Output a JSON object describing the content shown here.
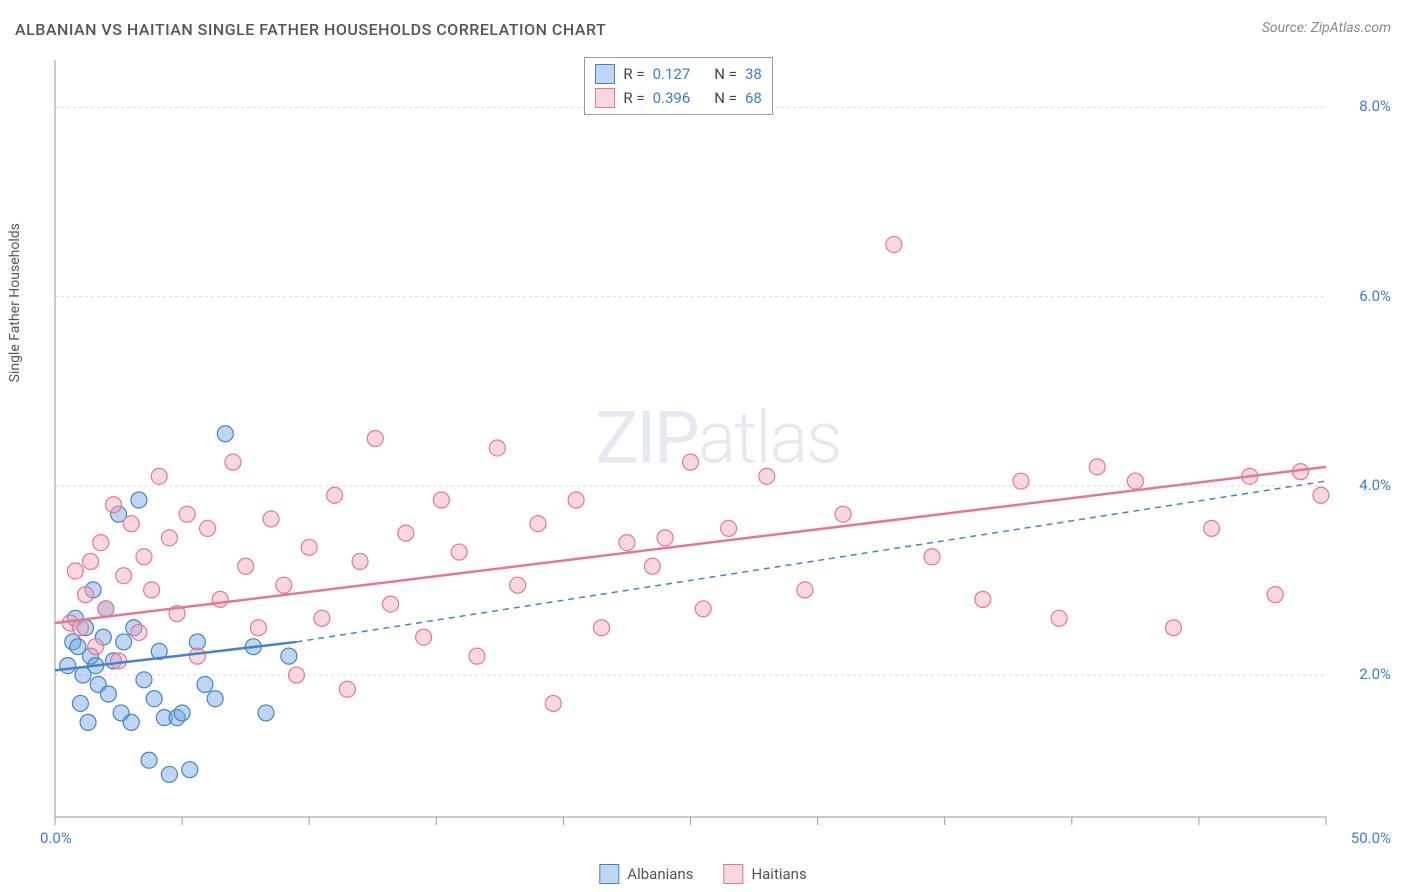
{
  "title": "ALBANIAN VS HAITIAN SINGLE FATHER HOUSEHOLDS CORRELATION CHART",
  "source": "Source: ZipAtlas.com",
  "y_axis_label": "Single Father Households",
  "watermark": {
    "part1": "ZIP",
    "part2": "atlas"
  },
  "chart": {
    "type": "scatter",
    "xlim": [
      0,
      50
    ],
    "ylim": [
      0.5,
      8.5
    ],
    "x_ticks": [
      0,
      5,
      10,
      15,
      20,
      25,
      30,
      35,
      40,
      45,
      50
    ],
    "x_tick_labels": {
      "0": "0.0%",
      "50": "50.0%"
    },
    "y_ticks": [
      2,
      4,
      6,
      8
    ],
    "y_tick_labels": {
      "2": "2.0%",
      "4": "4.0%",
      "6": "6.0%",
      "8": "8.0%"
    },
    "grid_color": "#d9d9d9",
    "axis_color": "#999999",
    "background_color": "#ffffff",
    "marker_radius": 8,
    "marker_fill_opacity": 0.45,
    "marker_stroke_width": 1.2,
    "series": [
      {
        "name": "Albanians",
        "color": "#6fa3e0",
        "stroke": "#4a82c7",
        "R": "0.127",
        "N": "38",
        "trend": {
          "x1": 0,
          "y1": 2.05,
          "x2": 9.5,
          "y2": 2.35,
          "dash_x2": 50,
          "dash_y2": 4.05
        },
        "points": [
          [
            0.5,
            2.1
          ],
          [
            0.7,
            2.35
          ],
          [
            0.8,
            2.6
          ],
          [
            0.9,
            2.3
          ],
          [
            1.0,
            1.7
          ],
          [
            1.1,
            2.0
          ],
          [
            1.2,
            2.5
          ],
          [
            1.3,
            1.5
          ],
          [
            1.4,
            2.2
          ],
          [
            1.5,
            2.9
          ],
          [
            1.6,
            2.1
          ],
          [
            1.7,
            1.9
          ],
          [
            1.9,
            2.4
          ],
          [
            2.0,
            2.7
          ],
          [
            2.1,
            1.8
          ],
          [
            2.3,
            2.15
          ],
          [
            2.5,
            3.7
          ],
          [
            2.6,
            1.6
          ],
          [
            2.7,
            2.35
          ],
          [
            3.0,
            1.5
          ],
          [
            3.1,
            2.5
          ],
          [
            3.3,
            3.85
          ],
          [
            3.5,
            1.95
          ],
          [
            3.7,
            1.1
          ],
          [
            3.9,
            1.75
          ],
          [
            4.1,
            2.25
          ],
          [
            4.3,
            1.55
          ],
          [
            4.5,
            0.95
          ],
          [
            4.8,
            1.55
          ],
          [
            5.0,
            1.6
          ],
          [
            5.3,
            1.0
          ],
          [
            5.6,
            2.35
          ],
          [
            5.9,
            1.9
          ],
          [
            6.3,
            1.75
          ],
          [
            6.7,
            4.55
          ],
          [
            7.8,
            2.3
          ],
          [
            8.3,
            1.6
          ],
          [
            9.2,
            2.2
          ]
        ]
      },
      {
        "name": "Haitians",
        "color": "#f4a6b8",
        "stroke": "#e07a94",
        "R": "0.396",
        "N": "68",
        "trend": {
          "x1": 0,
          "y1": 2.55,
          "x2": 50,
          "y2": 4.2
        },
        "points": [
          [
            0.6,
            2.55
          ],
          [
            0.8,
            3.1
          ],
          [
            1.0,
            2.5
          ],
          [
            1.2,
            2.85
          ],
          [
            1.4,
            3.2
          ],
          [
            1.6,
            2.3
          ],
          [
            1.8,
            3.4
          ],
          [
            2.0,
            2.7
          ],
          [
            2.3,
            3.8
          ],
          [
            2.5,
            2.15
          ],
          [
            2.7,
            3.05
          ],
          [
            3.0,
            3.6
          ],
          [
            3.3,
            2.45
          ],
          [
            3.5,
            3.25
          ],
          [
            3.8,
            2.9
          ],
          [
            4.1,
            4.1
          ],
          [
            4.5,
            3.45
          ],
          [
            4.8,
            2.65
          ],
          [
            5.2,
            3.7
          ],
          [
            5.6,
            2.2
          ],
          [
            6.0,
            3.55
          ],
          [
            6.5,
            2.8
          ],
          [
            7.0,
            4.25
          ],
          [
            7.5,
            3.15
          ],
          [
            8.0,
            2.5
          ],
          [
            8.5,
            3.65
          ],
          [
            9.0,
            2.95
          ],
          [
            9.5,
            2.0
          ],
          [
            10.0,
            3.35
          ],
          [
            10.5,
            2.6
          ],
          [
            11.0,
            3.9
          ],
          [
            11.5,
            1.85
          ],
          [
            12.0,
            3.2
          ],
          [
            12.6,
            4.5
          ],
          [
            13.2,
            2.75
          ],
          [
            13.8,
            3.5
          ],
          [
            14.5,
            2.4
          ],
          [
            15.2,
            3.85
          ],
          [
            15.9,
            3.3
          ],
          [
            16.6,
            2.2
          ],
          [
            17.4,
            4.4
          ],
          [
            18.2,
            2.95
          ],
          [
            19.0,
            3.6
          ],
          [
            19.6,
            1.7
          ],
          [
            20.5,
            3.85
          ],
          [
            21.5,
            2.5
          ],
          [
            22.5,
            3.4
          ],
          [
            23.5,
            3.15
          ],
          [
            24.0,
            3.45
          ],
          [
            25.0,
            4.25
          ],
          [
            25.5,
            2.7
          ],
          [
            26.5,
            3.55
          ],
          [
            28.0,
            4.1
          ],
          [
            29.5,
            2.9
          ],
          [
            31.0,
            3.7
          ],
          [
            33.0,
            6.55
          ],
          [
            34.5,
            3.25
          ],
          [
            36.5,
            2.8
          ],
          [
            38.0,
            4.05
          ],
          [
            39.5,
            2.6
          ],
          [
            41.0,
            4.2
          ],
          [
            42.5,
            4.05
          ],
          [
            44.0,
            2.5
          ],
          [
            45.5,
            3.55
          ],
          [
            47.0,
            4.1
          ],
          [
            48.0,
            2.85
          ],
          [
            49.0,
            4.15
          ],
          [
            49.8,
            3.9
          ]
        ]
      }
    ]
  },
  "stat_legend_labels": {
    "R": "R =",
    "N": "N ="
  },
  "bottom_legend": [
    "Albanians",
    "Haitians"
  ]
}
